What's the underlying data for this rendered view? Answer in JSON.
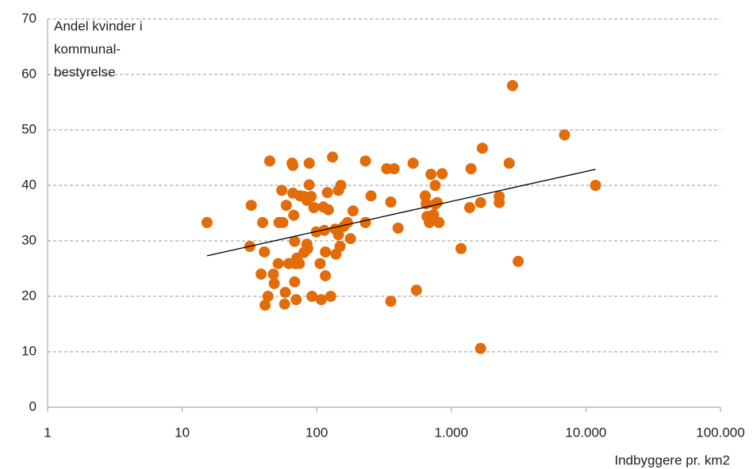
{
  "chart_data": {
    "type": "scatter",
    "y_label": [
      "Andel kvinder i",
      "kommunal-",
      "bestyrelse"
    ],
    "x_label": "Indbyggere pr. km2",
    "x_scale": "log",
    "grid": true,
    "color": "#e36c09",
    "xlim": [
      1,
      100000
    ],
    "xticks": [
      1,
      10,
      100,
      {
        "value": 1000,
        "label": "1.000"
      },
      {
        "value": 10000,
        "label": "10.000"
      },
      {
        "value": 100000,
        "label": "100.000"
      }
    ],
    "ylim": [
      0,
      70
    ],
    "yticks": [
      0,
      10,
      20,
      30,
      40,
      50,
      60,
      70
    ],
    "x": [
      15.3,
      32.6,
      31.8,
      39.6,
      40.8,
      38.6,
      41.3,
      43.4,
      44.7,
      47.6,
      48.3,
      51.7,
      52.4,
      56,
      55,
      57.7,
      58.4,
      59.4,
      62,
      65.6,
      66.5,
      66.5,
      67.5,
      68.5,
      68.5,
      69.4,
      70.3,
      71.3,
      74.3,
      75.3,
      80.4,
      80.4,
      84.5,
      84.5,
      85.7,
      87.9,
      87.9,
      90.9,
      92.1,
      95.2,
      99.2,
      106,
      108,
      112,
      114,
      116,
      116,
      120,
      122,
      127,
      131,
      137,
      139,
      145,
      145,
      149,
      151,
      159,
      169,
      178,
      186,
      230,
      230,
      253,
      331,
      355,
      355,
      376,
      402,
      520,
      550,
      640,
      650,
      660,
      687,
      706,
      738,
      759,
      759,
      785,
      810,
      855,
      1180,
      1370,
      1400,
      1650,
      1650,
      1700,
      2270,
      2270,
      2690,
      2850,
      3140,
      6940,
      11800
    ],
    "y": [
      33.3,
      36.4,
      29.0,
      33.3,
      28.0,
      24.0,
      18.4,
      20.0,
      44.4,
      24.0,
      22.3,
      25.9,
      33.3,
      33.3,
      39.1,
      18.6,
      20.7,
      36.4,
      25.9,
      44.0,
      43.6,
      38.6,
      34.6,
      29.9,
      22.6,
      25.9,
      19.4,
      26.9,
      25.9,
      38.1,
      27.9,
      38.0,
      37.3,
      29.4,
      28.6,
      40.1,
      44.0,
      38.0,
      20.0,
      36.0,
      31.6,
      25.9,
      19.4,
      36.1,
      31.9,
      28.0,
      23.7,
      38.7,
      35.6,
      20.0,
      45.1,
      32.1,
      27.6,
      39.1,
      31.1,
      29.0,
      40.0,
      32.6,
      33.3,
      30.4,
      35.4,
      33.3,
      44.4,
      38.1,
      43.0,
      19.1,
      37.0,
      43.0,
      32.3,
      44.0,
      21.1,
      38.1,
      36.7,
      34.4,
      33.3,
      42.0,
      34.7,
      40.0,
      36.6,
      36.9,
      33.3,
      42.1,
      28.6,
      36.0,
      43.0,
      36.9,
      10.6,
      46.7,
      38.0,
      36.9,
      44.0,
      58.0,
      26.3,
      49.1,
      40.0
    ],
    "trendline": {
      "x": [
        15.3,
        11800
      ],
      "y": [
        27.3,
        42.9
      ],
      "color": "#000000"
    }
  }
}
